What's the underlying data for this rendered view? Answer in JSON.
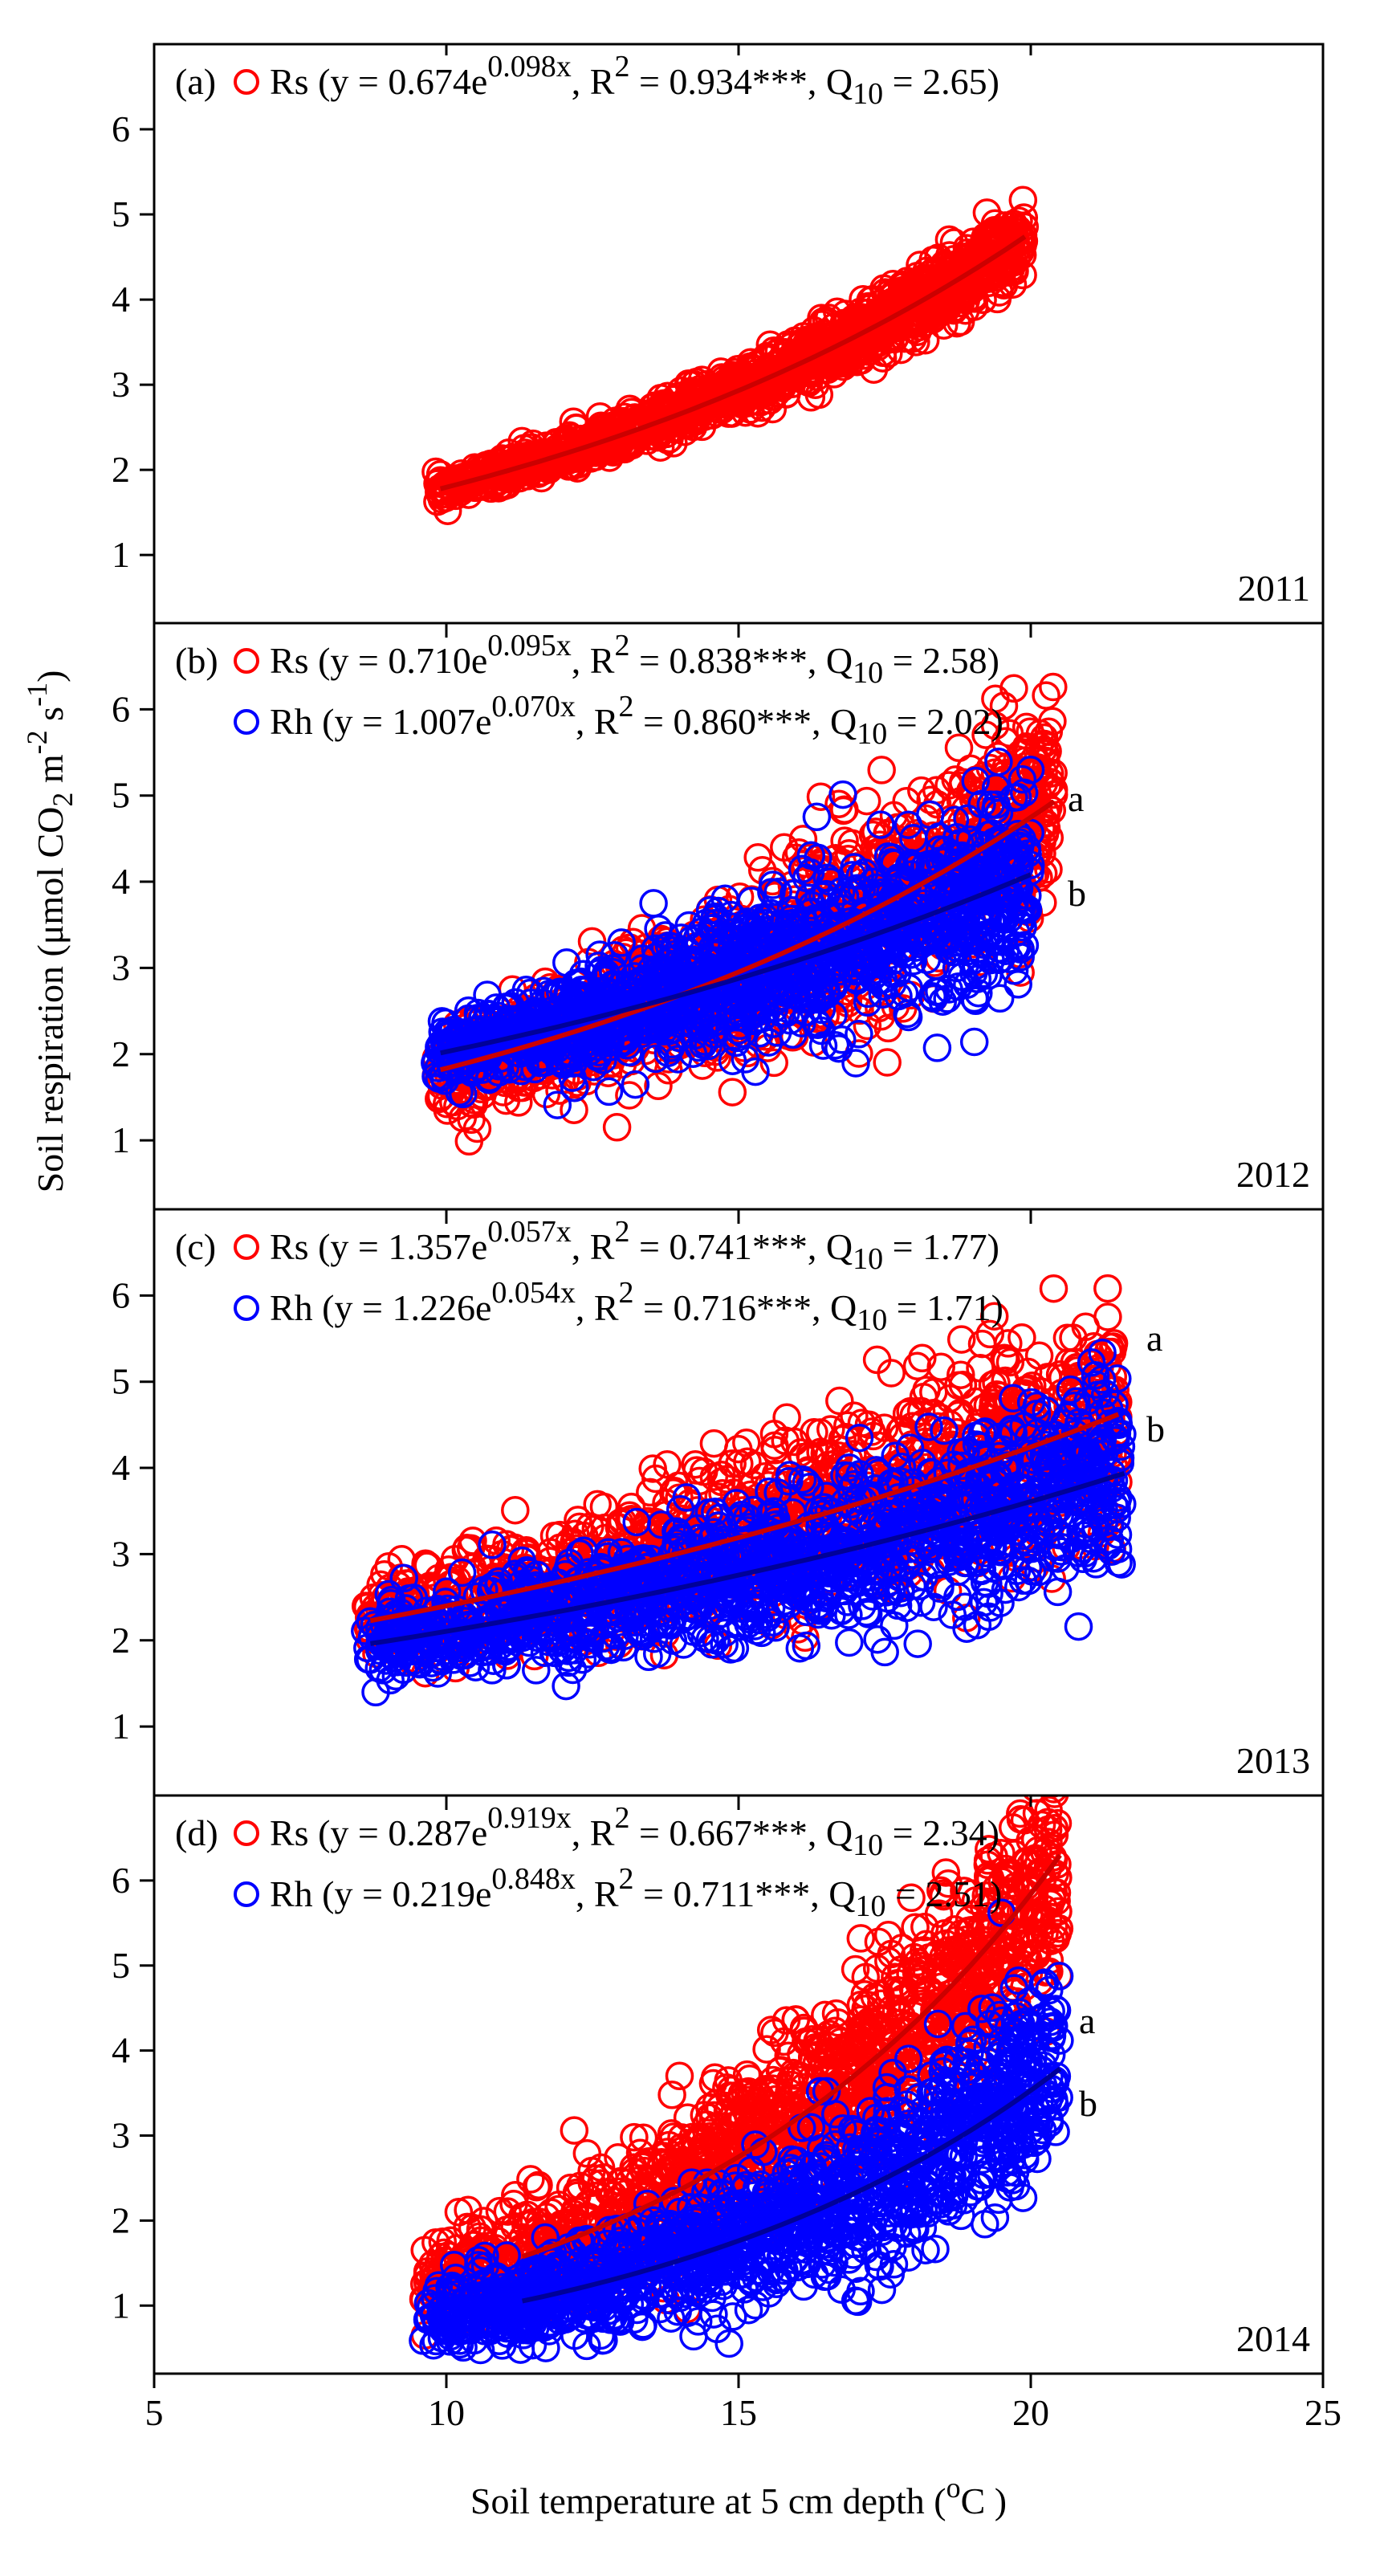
{
  "figure": {
    "ylabel": "Soil respiration (μmol CO",
    "ylabel_sub": "2",
    "ylabel_mid": " m",
    "ylabel_sup1": "-2",
    "ylabel_s": " s",
    "ylabel_sup2": "-1",
    "ylabel_end": ")",
    "xlabel_pre": "Soil temperature at 5 cm depth (",
    "xlabel_sup": "o",
    "xlabel_post": "C )",
    "x_ticks": [
      "5",
      "10",
      "15",
      "20",
      "25"
    ],
    "y_ticks": [
      "1",
      "2",
      "3",
      "4",
      "5",
      "6"
    ]
  },
  "colors": {
    "rs": "#ff0000",
    "rh": "#0000ff",
    "rs_line": "#cc0000",
    "rh_line": "#000099"
  },
  "chart_data": [
    {
      "type": "scatter",
      "panel": "(a)",
      "year": "2011",
      "xlim": [
        5,
        25
      ],
      "ylim": [
        0.2,
        7
      ],
      "series": [
        {
          "name": "Rs",
          "a": 0.674,
          "b": 0.098,
          "xrange": [
            9.8,
            19.9
          ],
          "label": {
            "pre": "Rs (y = 0.674e",
            "exp": "0.098x",
            "mid": ", R",
            "sq": "2",
            "r2": " = 0.934***, Q",
            "sub": "10",
            "q10": " = 2.65)"
          }
        }
      ],
      "letters": []
    },
    {
      "type": "scatter",
      "panel": "(b)",
      "year": "2012",
      "xlim": [
        5,
        25
      ],
      "ylim": [
        0.2,
        7
      ],
      "series": [
        {
          "name": "Rs",
          "a": 0.71,
          "b": 0.095,
          "xrange": [
            9.8,
            20.4
          ],
          "label": {
            "pre": "Rs (y = 0.710e",
            "exp": "0.095x",
            "mid": ", R",
            "sq": "2",
            "r2": " = 0.838***, Q",
            "sub": "10",
            "q10": " = 2.58)"
          }
        },
        {
          "name": "Rh",
          "a": 1.007,
          "b": 0.07,
          "xrange": [
            9.8,
            20.0
          ],
          "label": {
            "pre": "Rh (y = 1.007e",
            "exp": "0.070x",
            "mid": ", R",
            "sq": "2",
            "r2": " = 0.860***, Q",
            "sub": "10",
            "q10": " = 2.02)"
          }
        }
      ],
      "letters": [
        "a",
        "b"
      ]
    },
    {
      "type": "scatter",
      "panel": "(c)",
      "year": "2013",
      "xlim": [
        5,
        25
      ],
      "ylim": [
        0.2,
        7
      ],
      "series": [
        {
          "name": "Rs",
          "a": 1.357,
          "b": 0.057,
          "xrange": [
            8.6,
            21.5
          ],
          "label": {
            "pre": "Rs (y = 1.357e",
            "exp": "0.057x",
            "mid": ", R",
            "sq": "2",
            "r2": " = 0.741***, Q",
            "sub": "10",
            "q10": " = 1.77)"
          }
        },
        {
          "name": "Rh",
          "a": 1.226,
          "b": 0.054,
          "xrange": [
            8.6,
            21.6
          ],
          "label": {
            "pre": "Rh (y = 1.226e",
            "exp": "0.054x",
            "mid": ", R",
            "sq": "2",
            "r2": " = 0.716***, Q",
            "sub": "10",
            "q10": " = 1.71)"
          }
        }
      ],
      "letters": [
        "a",
        "b"
      ]
    },
    {
      "type": "scatter",
      "panel": "(d)",
      "year": "2014",
      "xlim": [
        5,
        25
      ],
      "ylim": [
        0.2,
        7
      ],
      "series": [
        {
          "name": "Rs",
          "a": 0.287,
          "b": 0.919,
          "xrange": [
            9.6,
            20.5
          ],
          "label": {
            "pre": "Rs (y = 0.287e",
            "exp": "0.919x",
            "mid": ", R",
            "sq": "2",
            "r2": " = 0.667***, Q",
            "sub": "10",
            "q10": " = 2.34)"
          }
        },
        {
          "name": "Rh",
          "a": 0.219,
          "b": 0.848,
          "xrange": [
            9.6,
            20.5
          ],
          "label": {
            "pre": "Rh (y = 0.219e",
            "exp": "0.848x",
            "mid": ", R",
            "sq": "2",
            "r2": " = 0.711***, Q",
            "sub": "10",
            "q10": " = 2.51)"
          }
        }
      ],
      "letters": [
        "a",
        "b"
      ]
    }
  ]
}
